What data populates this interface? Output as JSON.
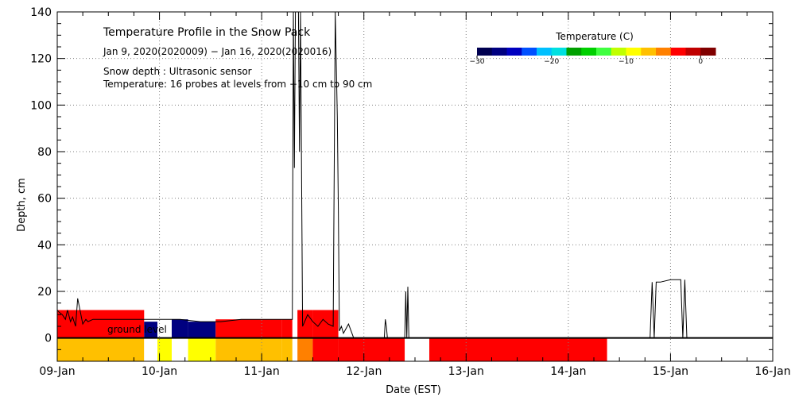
{
  "chart_data": {
    "type": "area",
    "title": "Temperature Profile in the Snow Pack",
    "subtitle": "Jan  9, 2020(2020009) − Jan 16, 2020(2020016)",
    "notes": [
      "Snow depth : Ultrasonic sensor",
      "Temperature: 16 probes at levels from −10 cm to 90 cm"
    ],
    "ground_label": "ground level",
    "xlabel": "Date (EST)",
    "ylabel": "Depth, cm",
    "x_ticks": [
      "09-Jan",
      "10-Jan",
      "11-Jan",
      "12-Jan",
      "13-Jan",
      "14-Jan",
      "15-Jan",
      "16-Jan"
    ],
    "xlim": [
      0,
      7
    ],
    "ylim": [
      -10,
      140
    ],
    "y_ticks": [
      0,
      20,
      40,
      60,
      80,
      100,
      120,
      140
    ],
    "grid": true,
    "colorbar": {
      "title": "Temperature (C)",
      "ticks": [
        -30,
        -20,
        -10,
        0
      ],
      "range": [
        -30,
        2
      ],
      "colors": [
        "#000050",
        "#000080",
        "#0000c0",
        "#0050ff",
        "#00c0ff",
        "#00e0e0",
        "#00a000",
        "#00d000",
        "#40ff40",
        "#c0ff00",
        "#ffff00",
        "#ffc000",
        "#ff8000",
        "#ff0000",
        "#c00000",
        "#800000"
      ]
    },
    "snow_depth_series": {
      "name": "Snow depth",
      "x": [
        0.0,
        0.02,
        0.05,
        0.08,
        0.1,
        0.13,
        0.15,
        0.18,
        0.2,
        0.25,
        0.28,
        0.3,
        0.35,
        0.4,
        0.5,
        0.6,
        0.8,
        1.0,
        1.2,
        1.4,
        1.6,
        1.8,
        2.0,
        2.1,
        2.2,
        2.3,
        2.31,
        2.32,
        2.33,
        2.35,
        2.36,
        2.37,
        2.38,
        2.4,
        2.45,
        2.5,
        2.55,
        2.6,
        2.65,
        2.7,
        2.72,
        2.74,
        2.75,
        2.76,
        2.78,
        2.8,
        2.85,
        2.9,
        2.95,
        3.2,
        3.21,
        3.22,
        3.23,
        3.4,
        3.41,
        3.42,
        3.43,
        3.44,
        3.5,
        3.51,
        3.52,
        3.53,
        3.54,
        4.6,
        4.7,
        4.8,
        4.9,
        5.0,
        5.5,
        5.8,
        5.82,
        5.84,
        5.86,
        5.9,
        6.0,
        6.05,
        6.1,
        6.12,
        6.14,
        6.16,
        6.2,
        7.0
      ],
      "values": [
        12,
        11,
        10,
        8,
        12,
        7,
        9,
        5,
        17,
        6,
        8,
        7,
        8,
        8,
        8,
        8,
        8,
        8,
        8,
        7,
        7,
        8,
        8,
        8,
        8,
        8,
        140,
        73,
        140,
        140,
        140,
        80,
        140,
        5,
        10,
        7,
        5,
        8,
        6,
        5,
        140,
        95,
        55,
        3,
        5,
        2,
        6,
        0,
        0,
        0,
        8,
        5,
        0,
        0,
        20,
        0,
        22,
        0,
        0,
        0,
        0,
        0,
        0,
        0,
        0,
        0,
        0,
        0,
        0,
        0,
        24,
        0,
        24,
        24,
        25,
        25,
        25,
        0,
        25,
        0,
        0,
        0
      ]
    },
    "temperature_bands": [
      {
        "x_range": [
          0.0,
          0.85
        ],
        "above_ground": "#ff0000",
        "below_ground": "#ffc000"
      },
      {
        "x_range": [
          0.85,
          0.98
        ],
        "above_ground": "#000080",
        "below_ground": "#ffffff"
      },
      {
        "x_range": [
          0.98,
          1.12
        ],
        "above_ground": "#ffffff",
        "below_ground": "#ffff00"
      },
      {
        "x_range": [
          1.12,
          1.28
        ],
        "above_ground": "#000080",
        "below_ground": "#ffffff"
      },
      {
        "x_range": [
          1.28,
          1.55
        ],
        "above_ground": "#000080",
        "below_ground": "#ffff00"
      },
      {
        "x_range": [
          1.55,
          2.2
        ],
        "above_ground": "#ff0000",
        "below_ground": "#ffc000"
      },
      {
        "x_range": [
          2.2,
          2.3
        ],
        "above_ground": "#ff0000",
        "below_ground": "#ffc000"
      },
      {
        "x_range": [
          2.35,
          2.5
        ],
        "above_ground": "#ff0000",
        "below_ground": "#ff8000"
      },
      {
        "x_range": [
          2.5,
          2.75
        ],
        "above_ground": "#ff0000",
        "below_ground": "#ff0000"
      },
      {
        "x_range": [
          2.75,
          3.4
        ],
        "above_ground": "none",
        "below_ground": "#ff0000"
      },
      {
        "x_range": [
          3.4,
          3.64
        ],
        "above_ground": "none",
        "below_ground": "#ffffff"
      },
      {
        "x_range": [
          3.64,
          5.38
        ],
        "above_ground": "none",
        "below_ground": "#ff0000"
      },
      {
        "x_range": [
          5.38,
          7.0
        ],
        "above_ground": "none",
        "below_ground": "#ffffff"
      }
    ],
    "axis_color": "#000000",
    "grid_color": "#808080"
  }
}
